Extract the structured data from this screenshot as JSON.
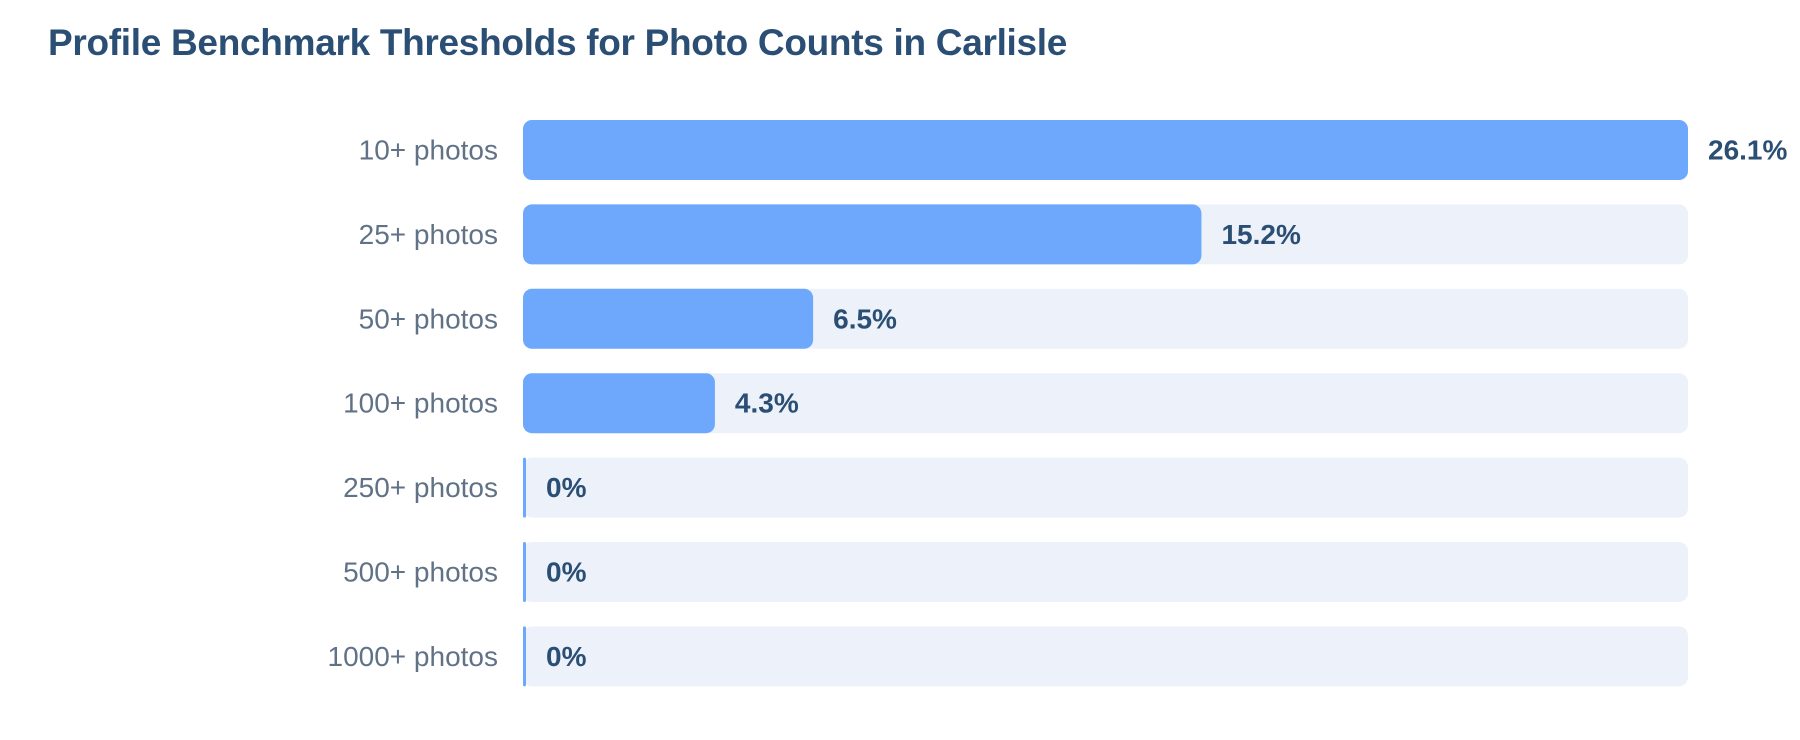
{
  "title": "Profile Benchmark Thresholds for Photo Counts in Carlisle",
  "colors": {
    "title": "#2b4e75",
    "bar": "#6ea8fd",
    "track": "#edf2fa",
    "category_label": "#617287",
    "value_label": "#2b4e75"
  },
  "chart_data": {
    "type": "bar",
    "orientation": "horizontal",
    "title": "Profile Benchmark Thresholds for Photo Counts in Carlisle",
    "xlabel": "",
    "ylabel": "",
    "xlim": [
      0,
      26.1
    ],
    "grid": false,
    "legend": "none",
    "categories": [
      "10+ photos",
      "25+ photos",
      "50+ photos",
      "100+ photos",
      "250+ photos",
      "500+ photos",
      "1000+ photos"
    ],
    "values": [
      26.1,
      15.2,
      6.5,
      4.3,
      0,
      0,
      0
    ],
    "value_labels": [
      "26.1%",
      "15.2%",
      "6.5%",
      "4.3%",
      "0%",
      "0%",
      "0%"
    ]
  }
}
